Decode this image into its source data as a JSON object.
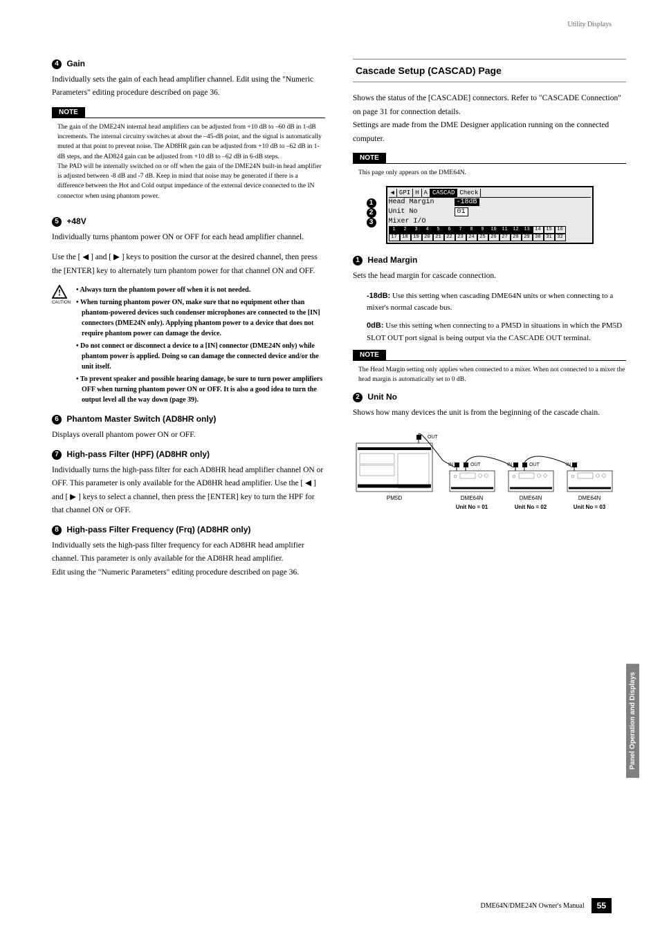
{
  "header": {
    "breadcrumb": "Utility Displays"
  },
  "left": {
    "s4": {
      "num": "4",
      "title": "Gain",
      "body": "Individually sets the gain of each head amplifier channel. Edit using the \"Numeric Parameters\" editing procedure described on page 36.",
      "note_label": "NOTE",
      "note": "The gain of the DME24N internal head amplifiers can be adjusted from +10 dB to –60 dB in 1-dB increments. The internal circuitry switches at about the –45-dB point, and the signal is automatically muted at that point to prevent noise. The AD8HR gain can be adjusted from +10 dB to –62 dB in 1-dB steps, and the AD824 gain can be adjusted from +10 dB to –62 dB in 6-dB steps.\nThe PAD will be internally switched on or off when the gain of the DME24N built-in head amplifier is adjusted between -8 dB and -7 dB. Keep in mind that noise may be generated if there is a difference between the Hot and Cold output impedance of the external device connected to the IN connector when using phantom power."
    },
    "s5": {
      "num": "5",
      "title": "+48V",
      "body1": "Individually turns phantom power ON or OFF for each head amplifier channel.",
      "body2": "Use the [ ◀ ] and [ ▶ ] keys to position the cursor at the desired channel, then press the [ENTER] key to alternately turn phantom power for that channel ON and OFF.",
      "caution_label": "CAUTION",
      "caution": [
        "Always turn the phantom power off when it is not needed.",
        "When turning phantom power ON, make sure that no equipment other than phantom-powered devices such condenser microphones are connected to the [IN] connectors (DME24N only). Applying phantom power to a device that does not require phantom power can damage the device.",
        "Do not connect or disconnect a device to a [IN] connector (DME24N only) while phantom power is applied. Doing so can damage the connected device and/or the unit itself.",
        "To prevent speaker and possible hearing damage, be sure to turn power amplifiers OFF when turning phantom power ON or OFF. It is also a good idea to turn the output level all the way down (page 39)."
      ]
    },
    "s6": {
      "num": "6",
      "title": "Phantom Master Switch (AD8HR only)",
      "body": "Displays overall phantom power ON or OFF."
    },
    "s7": {
      "num": "7",
      "title": "High-pass Filter (HPF) (AD8HR only)",
      "body": "Individually turns the high-pass filter for each AD8HR head amplifier channel ON or OFF. This parameter is only available for the AD8HR head amplifier. Use the [ ◀ ] and [ ▶ ] keys to select a channel, then press the [ENTER] key to turn the HPF for that channel ON or OFF."
    },
    "s8": {
      "num": "8",
      "title": "High-pass Filter Frequency (Frq) (AD8HR only)",
      "body": "Individually sets the high-pass filter frequency for each AD8HR head amplifier channel. This parameter is only available for the AD8HR head amplifier.\nEdit using the \"Numeric Parameters\" editing procedure described on page 36."
    }
  },
  "right": {
    "section_title": "Cascade Setup (CASCAD) Page",
    "intro": "Shows the status of the [CASCADE] connectors. Refer to \"CASCADE Connection\" on page 31 for connection details.\nSettings are made from the DME Designer application running on the connected computer.",
    "note_label": "NOTE",
    "note": "This page only appears on the DME64N.",
    "lcd": {
      "tabs": [
        "GPI",
        "H",
        "A",
        "CASCAD",
        "Check"
      ],
      "active_tab": 3,
      "row1_label": "Head Margin",
      "row1_value": "-18dB",
      "row2_label": "Unit No",
      "row2_value": "01",
      "row3_label": "Mixer I/O",
      "grid_top": [
        "1",
        "2",
        "3",
        "4",
        "5",
        "6",
        "7",
        "8",
        "9",
        "10",
        "11",
        "12",
        "13",
        "14",
        "15",
        "16"
      ],
      "grid_bottom": [
        "17",
        "18",
        "19",
        "20",
        "21",
        "22",
        "23",
        "24",
        "25",
        "26",
        "27",
        "28",
        "29",
        "30",
        "31",
        "32"
      ],
      "pointers": [
        "1",
        "2",
        "3"
      ]
    },
    "s1": {
      "num": "1",
      "title": "Head Margin",
      "body": "Sets the head margin for cascade connection.",
      "def1_label": "-18dB:",
      "def1_text": "Use this setting when cascading DME64N units or when connecting to a mixer's normal cascade bus.",
      "def2_label": "0dB:",
      "def2_text": "Use this setting when connecting to a PM5D in situations in which the PM5D SLOT OUT port signal is being output via the CASCADE OUT terminal.",
      "note_label": "NOTE",
      "note": "The Head Margin setting only applies when connected to a mixer. When not connected to a mixer the head margin is automatically set to 0 dB."
    },
    "s2": {
      "num": "2",
      "title": "Unit No",
      "body": "Shows how many devices the unit is from the beginning of the cascade chain."
    },
    "diagram": {
      "devices": [
        "PM5D",
        "DME64N",
        "DME64N",
        "DME64N"
      ],
      "unit_labels": [
        "Unit No = 01",
        "Unit No = 02",
        "Unit No = 03"
      ],
      "ports": {
        "out": "OUT",
        "in": "IN"
      }
    }
  },
  "side_tab": "Panel Operation and Displays",
  "footer": {
    "manual": "DME64N/DME24N Owner's Manual",
    "page": "55"
  }
}
